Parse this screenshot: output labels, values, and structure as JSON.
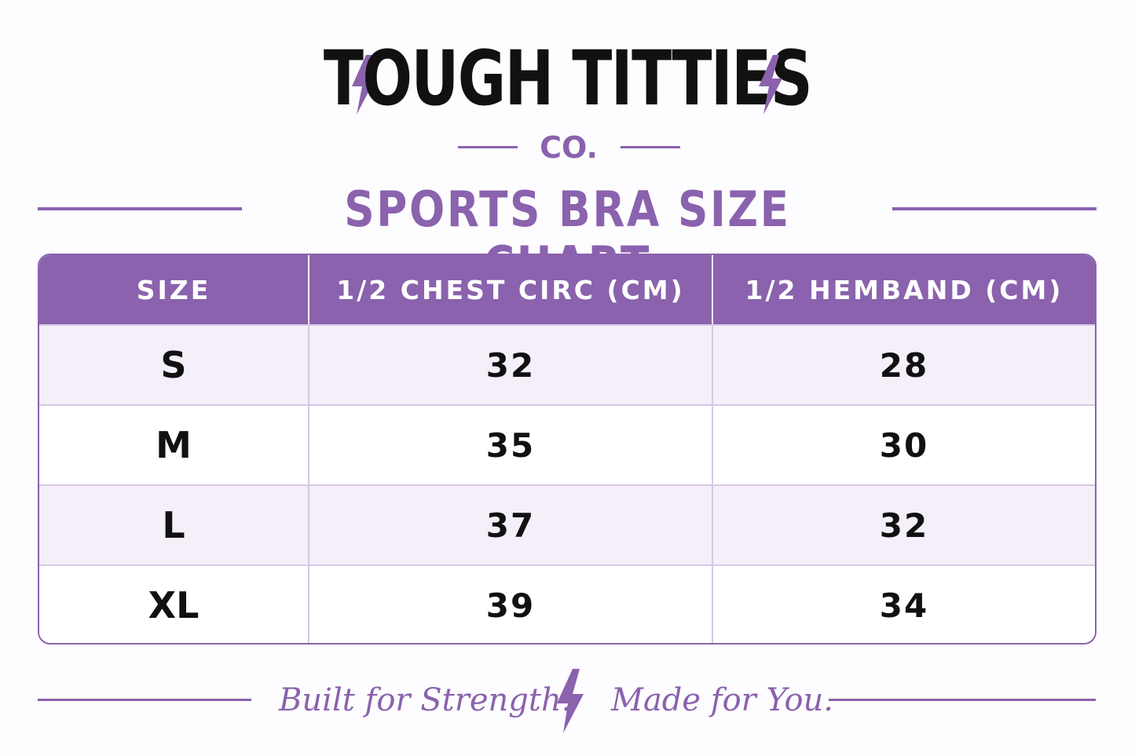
{
  "brand": {
    "name": "TOUGH TITTIES",
    "sub": "CO."
  },
  "title": "SPORTS BRA SIZE CHART",
  "table": {
    "headers": [
      "SIZE",
      "1/2 CHEST CIRC (CM)",
      "1/2 HEMBAND (CM)"
    ],
    "rows": [
      {
        "size": "S",
        "chest": "32",
        "hemband": "28"
      },
      {
        "size": "M",
        "chest": "35",
        "hemband": "30"
      },
      {
        "size": "L",
        "chest": "37",
        "hemband": "32"
      },
      {
        "size": "XL",
        "chest": "39",
        "hemband": "34"
      }
    ]
  },
  "footer": {
    "tagline_left": "Built for Strength.",
    "tagline_right": "Made for You."
  },
  "icons": {
    "logo_left": "lightning-bolt-icon",
    "logo_right": "lightning-bolt-icon",
    "footer_center": "lightning-bolt-icon"
  },
  "colors": {
    "accent": "#8a62ad",
    "row_tint": "#f4eff9",
    "text": "#111111"
  }
}
